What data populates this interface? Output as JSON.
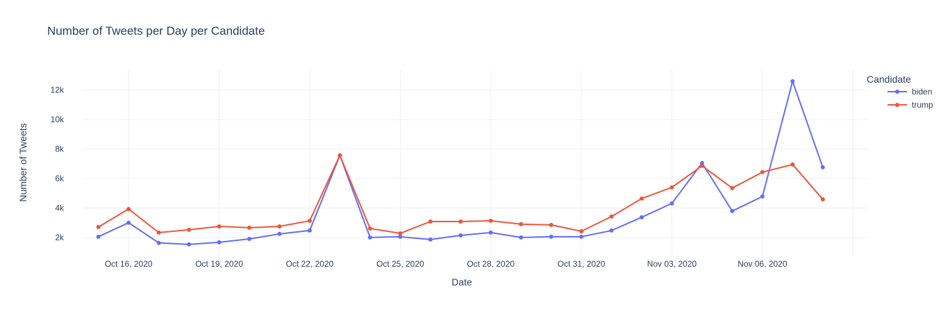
{
  "chart_data": {
    "type": "line",
    "title": "Number of Tweets per Day per Candidate",
    "xlabel": "Date",
    "ylabel": "Number of Tweets",
    "x_start": "2020-10-15",
    "x": [
      "Oct 15",
      "Oct 16",
      "Oct 17",
      "Oct 18",
      "Oct 19",
      "Oct 20",
      "Oct 21",
      "Oct 22",
      "Oct 23",
      "Oct 24",
      "Oct 25",
      "Oct 26",
      "Oct 27",
      "Oct 28",
      "Oct 29",
      "Oct 30",
      "Oct 31",
      "Nov 01",
      "Nov 02",
      "Nov 03",
      "Nov 04",
      "Nov 05",
      "Nov 06",
      "Nov 07",
      "Nov 08"
    ],
    "x_ticks": [
      {
        "day": 1,
        "label": "Oct 16, 2020"
      },
      {
        "day": 4,
        "label": "Oct 19, 2020"
      },
      {
        "day": 7,
        "label": "Oct 22, 2020"
      },
      {
        "day": 10,
        "label": "Oct 25, 2020"
      },
      {
        "day": 13,
        "label": "Oct 28, 2020"
      },
      {
        "day": 16,
        "label": "Oct 31, 2020"
      },
      {
        "day": 19,
        "label": "Nov 03, 2020"
      },
      {
        "day": 22,
        "label": "Nov 06, 2020"
      },
      {
        "day": 25,
        "label": ""
      }
    ],
    "x_range_days": [
      -0.5,
      25.5
    ],
    "y_ticks": [
      {
        "value": 2000,
        "label": "2k"
      },
      {
        "value": 4000,
        "label": "4k"
      },
      {
        "value": 6000,
        "label": "6k"
      },
      {
        "value": 8000,
        "label": "8k"
      },
      {
        "value": 10000,
        "label": "10k"
      },
      {
        "value": 12000,
        "label": "12k"
      }
    ],
    "ylim": [
      770,
      13400
    ],
    "grid": true,
    "legend_title": "Candidate",
    "legend_position": "top-right",
    "series": [
      {
        "name": "biden",
        "color": "#636efa",
        "values": [
          2050,
          3000,
          1630,
          1530,
          1670,
          1900,
          2240,
          2470,
          7570,
          2000,
          2050,
          1860,
          2140,
          2330,
          2000,
          2050,
          2050,
          2470,
          3370,
          4310,
          7050,
          3790,
          4780,
          12600,
          6760
        ]
      },
      {
        "name": "trump",
        "color": "#ef553b",
        "values": [
          2710,
          3930,
          2330,
          2520,
          2750,
          2660,
          2750,
          3130,
          7570,
          2610,
          2280,
          3080,
          3080,
          3130,
          2900,
          2850,
          2420,
          3420,
          4640,
          5400,
          6860,
          5350,
          6430,
          6950,
          4590
        ]
      }
    ]
  }
}
